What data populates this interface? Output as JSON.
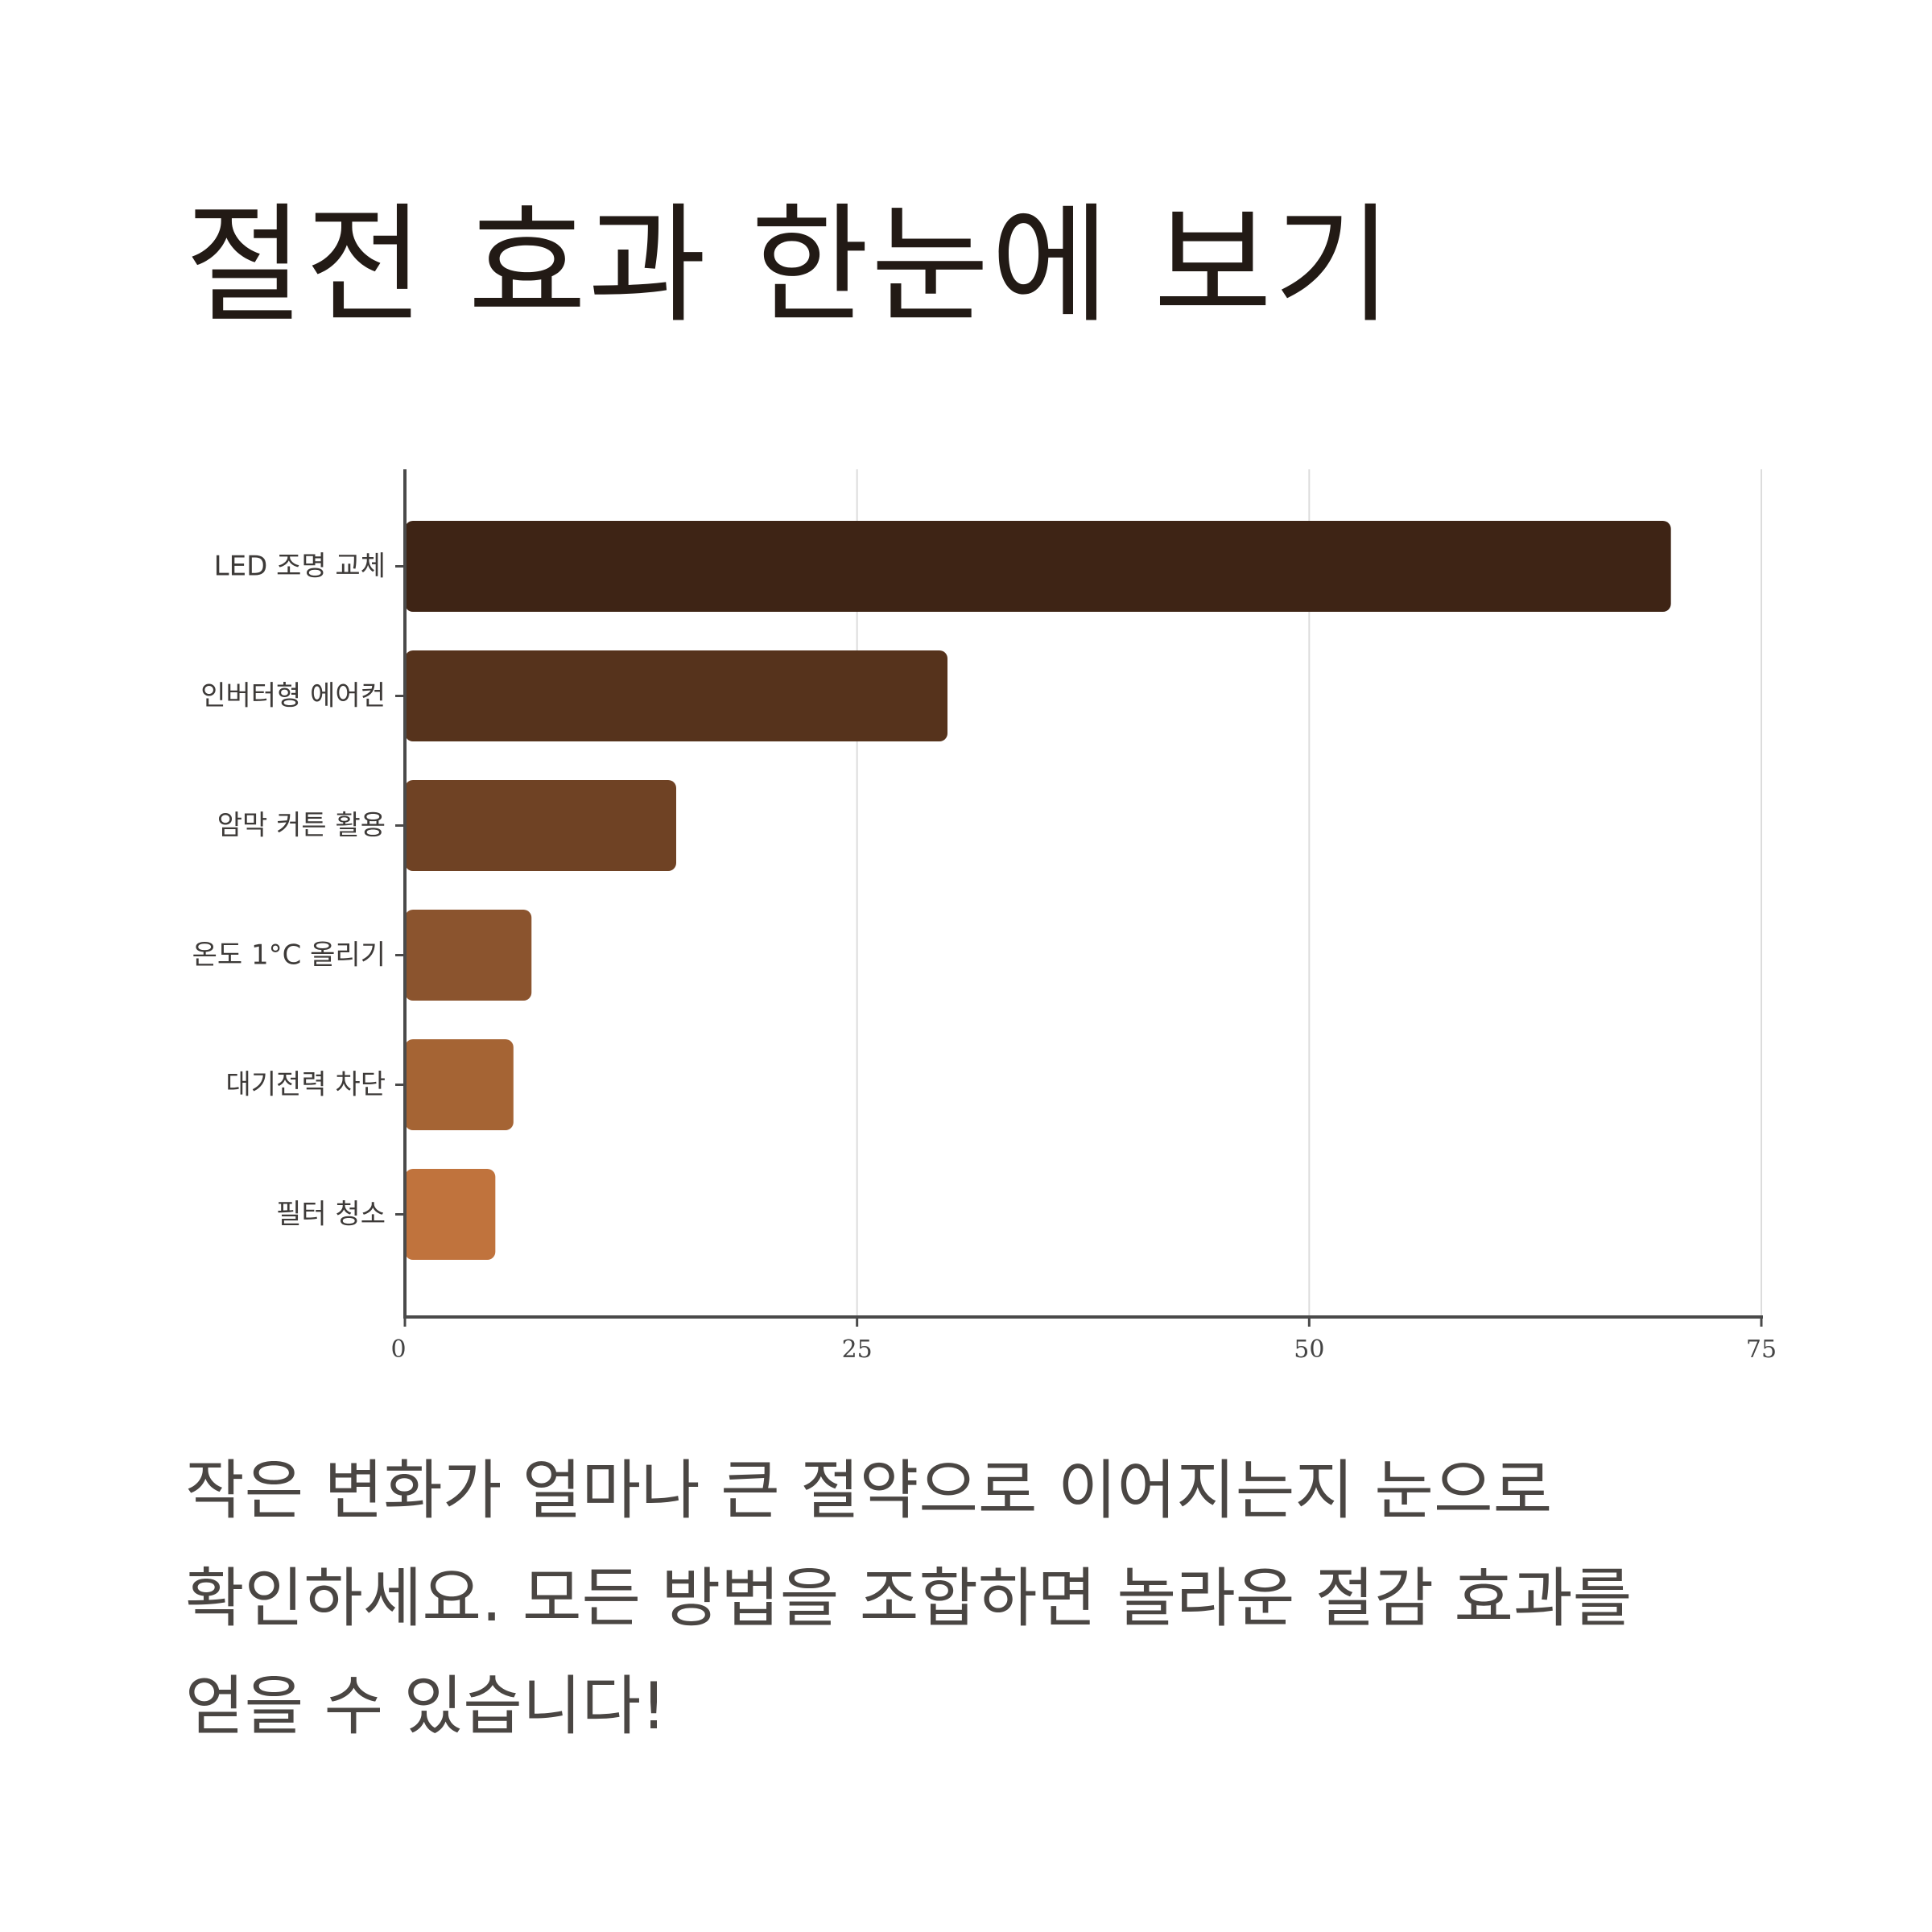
{
  "title": "절전 효과 한눈에 보기",
  "caption": "작은 변화가 얼마나 큰 절약으로 이어지는지 눈으로 확인하세요. 모든 방법을 조합하면 놀라운 절감 효과를 얻을 수 있습니다!",
  "chart_data": {
    "type": "bar",
    "orientation": "horizontal",
    "title": "",
    "xlabel": "",
    "ylabel": "",
    "categories": [
      "LED 조명 교체",
      "인버터형 에어컨",
      "암막 커튼 활용",
      "온도 1°C 올리기",
      "대기전력 차단",
      "필터 청소"
    ],
    "values": [
      70,
      30,
      15,
      7,
      6,
      5
    ],
    "colors": [
      "#3e2415",
      "#56331c",
      "#6f4224",
      "#8b542e",
      "#a56434",
      "#c0733d"
    ],
    "xlim": [
      0,
      75
    ],
    "xticks": [
      0,
      25,
      50,
      75
    ],
    "grid": "vertical",
    "legend": "none"
  }
}
